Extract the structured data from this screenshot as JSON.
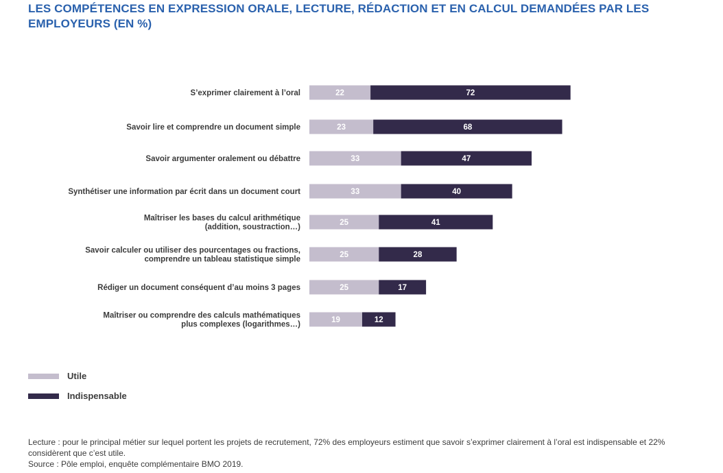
{
  "title": "LES COMPÉTENCES EN EXPRESSION ORALE, LECTURE, RÉDACTION ET EN CALCUL DEMANDÉES PAR LES EMPLOYEURS (EN %)",
  "chart_data": {
    "type": "bar",
    "orientation": "horizontal",
    "stacked": true,
    "categories": [
      [
        "S’exprimer clairement à l’oral"
      ],
      [
        "Savoir lire et comprendre un document simple"
      ],
      [
        "Savoir argumenter oralement ou débattre"
      ],
      [
        "Synthétiser une information par écrit dans un document court"
      ],
      [
        "Maîtriser les bases du calcul arithmétique",
        "(addition, soustraction…)"
      ],
      [
        "Savoir calculer ou utiliser des pourcentages ou fractions,",
        "comprendre un tableau statistique simple"
      ],
      [
        "Rédiger un document conséquent d’au moins 3 pages"
      ],
      [
        "Maîtriser ou comprendre des calculs mathématiques",
        "plus complexes (logarithmes…)"
      ]
    ],
    "series": [
      {
        "name": "Utile",
        "color": "#c4bdcd",
        "values": [
          22,
          23,
          33,
          33,
          25,
          25,
          25,
          19
        ]
      },
      {
        "name": "Indispensable",
        "color": "#332a4a",
        "values": [
          72,
          68,
          47,
          40,
          41,
          28,
          17,
          12
        ]
      }
    ],
    "legend_position": "bottom-left",
    "grid": false
  },
  "legend": {
    "utile": "Utile",
    "indispensable": "Indispensable"
  },
  "footnote": {
    "lecture": "Lecture : pour le principal métier sur lequel portent les projets de recrutement, 72% des employeurs estiment que savoir s’exprimer clairement à l’oral est indispensable et 22% considèrent que c’est utile.",
    "source": "Source : Pôle emploi, enquête complémentaire BMO 2019."
  },
  "colors": {
    "title": "#2a61ad",
    "utile": "#c4bdcd",
    "indispensable": "#332a4a"
  }
}
